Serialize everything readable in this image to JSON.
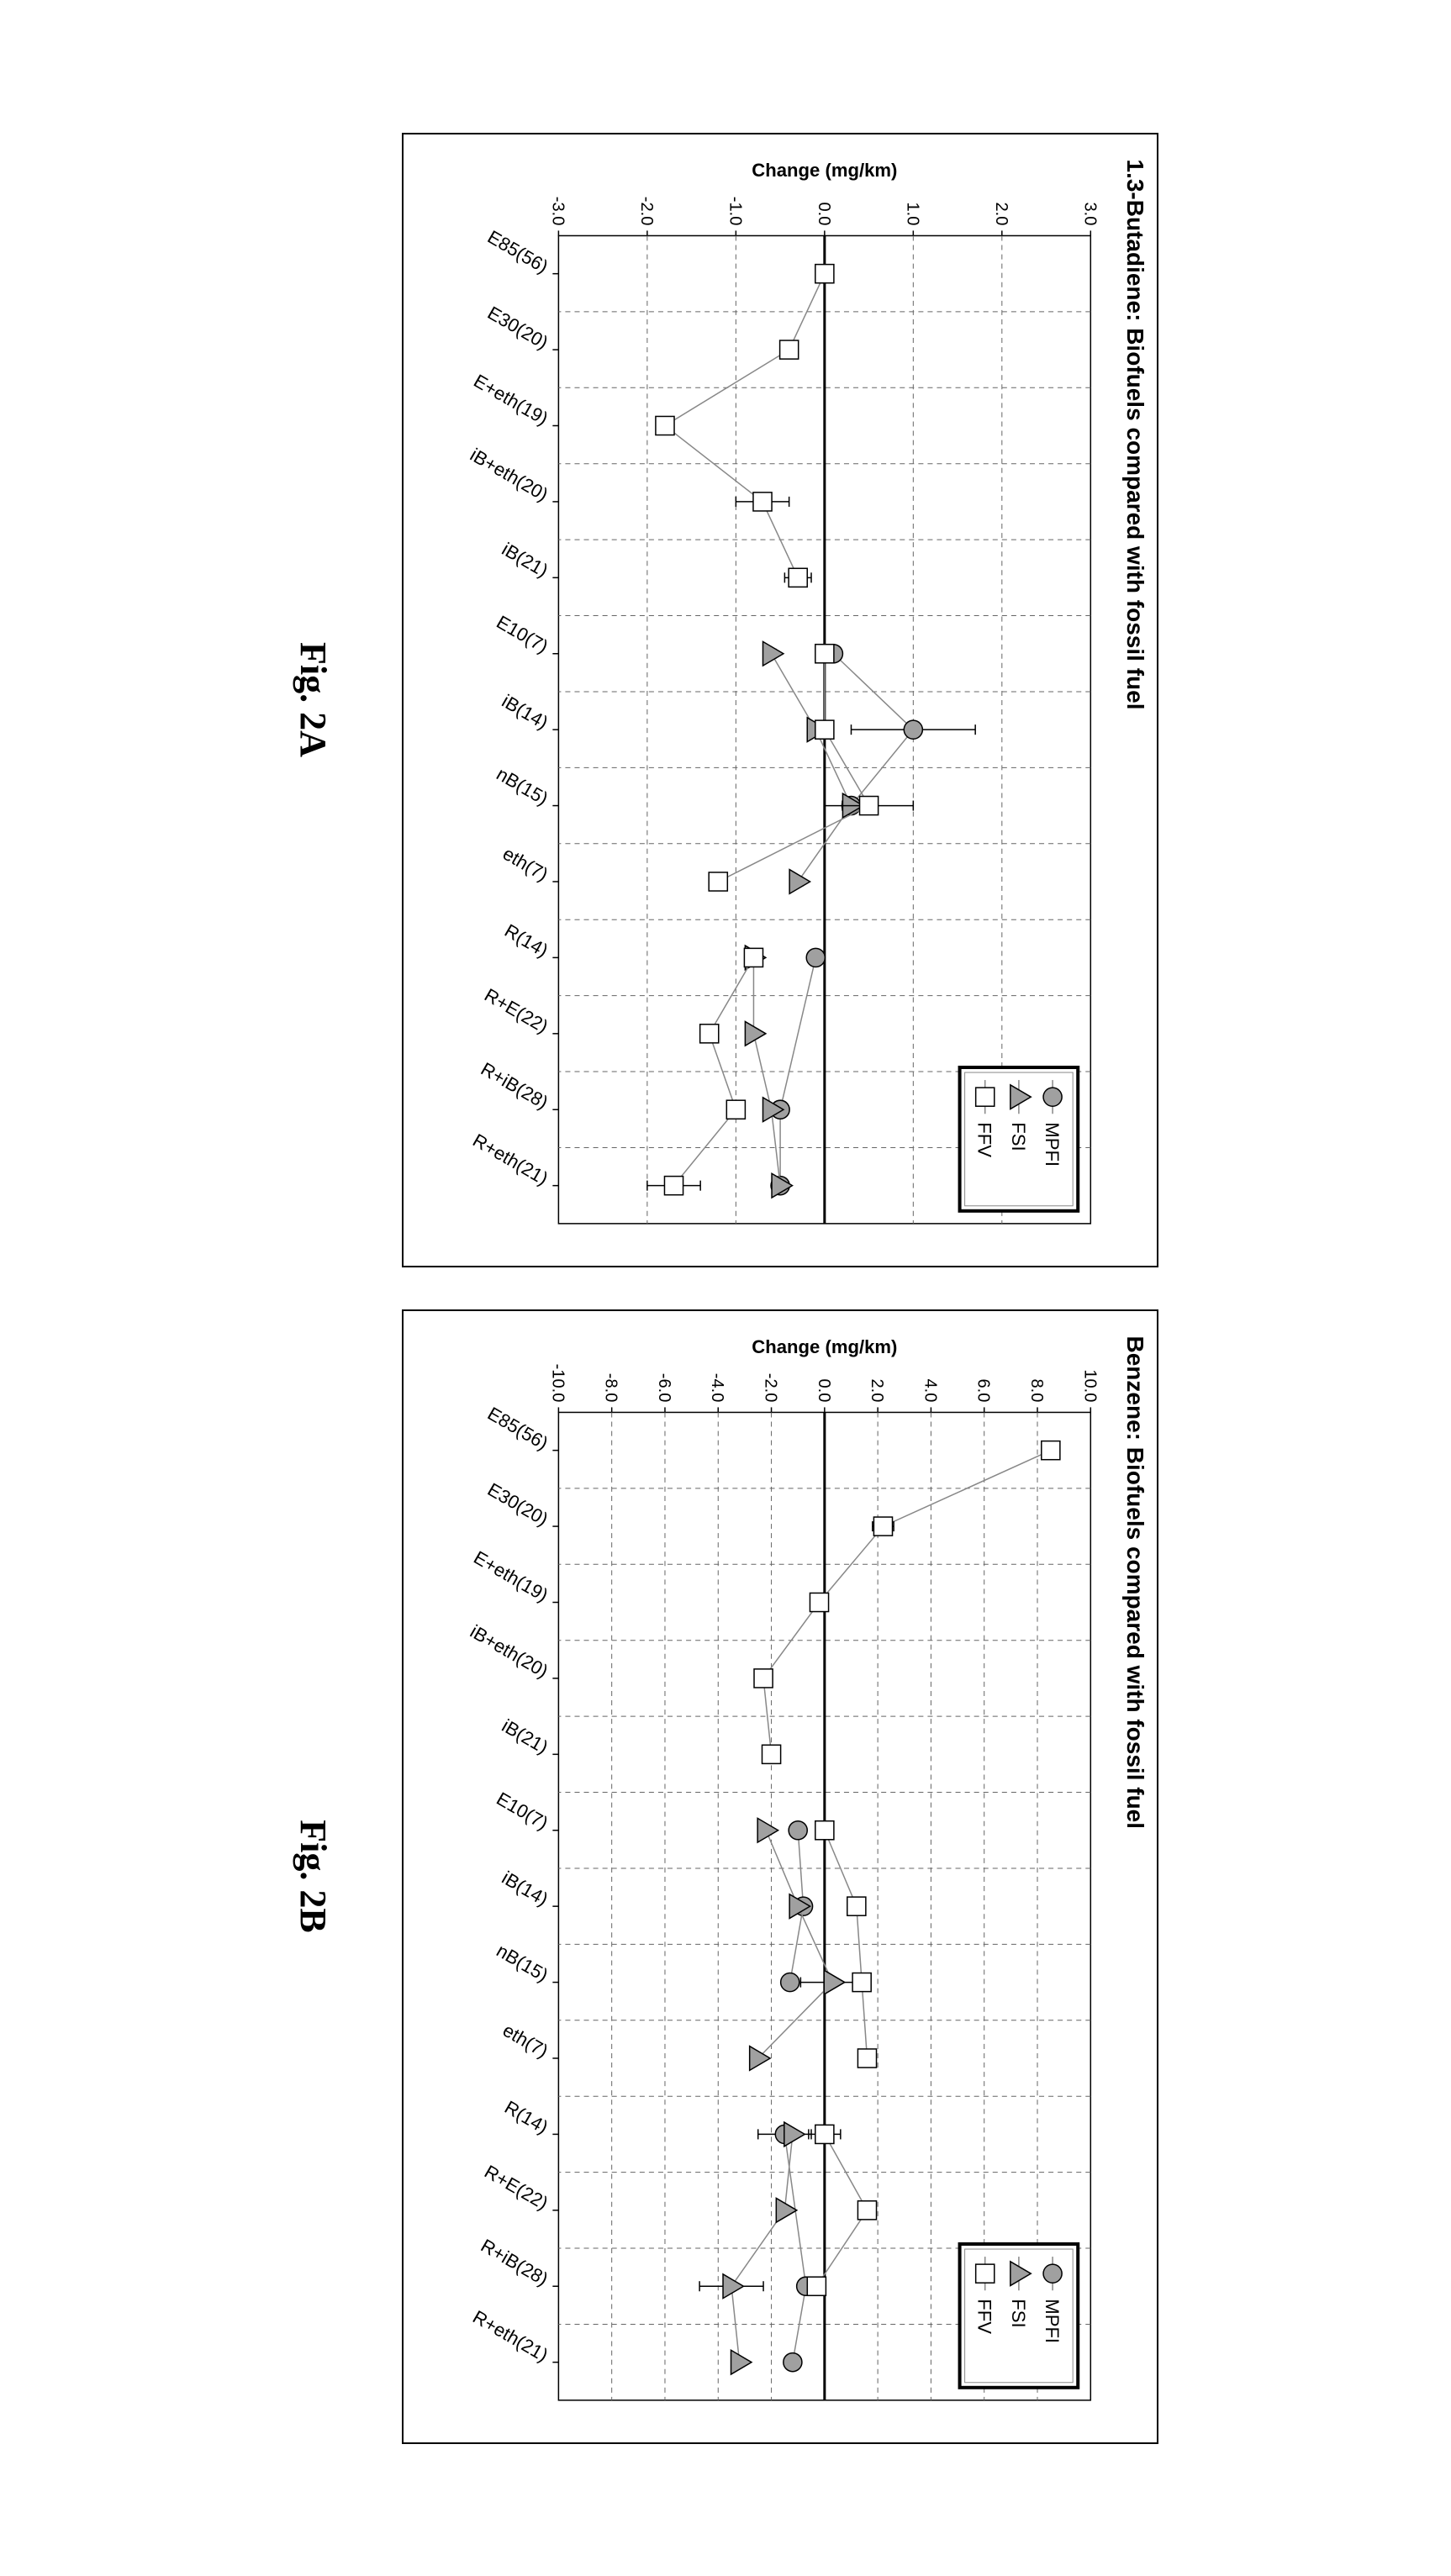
{
  "figure_labels": {
    "left": "Fig. 2A",
    "right": "Fig. 2B"
  },
  "legend": {
    "items": [
      {
        "label": "MPFI",
        "marker": "circle",
        "fill": "#a0a0a0",
        "stroke": "#000000"
      },
      {
        "label": "FSI",
        "marker": "triangle",
        "fill": "#a0a0a0",
        "stroke": "#000000"
      },
      {
        "label": "FFV",
        "marker": "square",
        "fill": "#ffffff",
        "stroke": "#000000"
      }
    ],
    "border_color": "#000000",
    "border_width": 4,
    "background": "#ffffff",
    "fontsize": 22
  },
  "chart_colors": {
    "background": "#ffffff",
    "axis": "#000000",
    "gridline": "#666666",
    "gridline_dash": "6,5",
    "zero_line": "#000000",
    "zero_line_width": 3,
    "series_line": "#888888",
    "series_line_width": 1.5,
    "marker_stroke_width": 1.5,
    "errorbar_color": "#000000"
  },
  "categories": [
    "E85(56)",
    "E30(20)",
    "E+eth(19)",
    "iB+eth(20)",
    "iB(21)",
    "E10(7)",
    "iB(14)",
    "nB(15)",
    "eth(7)",
    "R(14)",
    "R+E(22)",
    "R+iB(28)",
    "R+eth(21)"
  ],
  "category_groups": [
    {
      "start": 0,
      "end": 4
    },
    {
      "start": 5,
      "end": 8
    },
    {
      "start": 9,
      "end": 12
    }
  ],
  "chart_layout": {
    "marker_size": 11,
    "label_fontsize": 22,
    "tick_fontsize": 20,
    "xlabel_fontsize": 22,
    "xlabel_rotation": -60,
    "title_fontsize": 28
  },
  "chart_a": {
    "title": "1.3-Butadiene:  Biofuels compared with fossil fuel",
    "ylabel": "Change (mg/km)",
    "ylim": [
      -3.0,
      3.0
    ],
    "ytick_step": 1.0,
    "ytick_decimals": 1,
    "series": {
      "MPFI": {
        "data": [
          null,
          null,
          null,
          null,
          null,
          0.1,
          1.0,
          0.3,
          null,
          -0.1,
          null,
          -0.5,
          -0.5
        ],
        "err": [
          null,
          null,
          null,
          null,
          null,
          0.05,
          0.7,
          0.1,
          null,
          0.05,
          null,
          0.05,
          0.05
        ]
      },
      "FSI": {
        "data": [
          null,
          null,
          null,
          null,
          null,
          -0.6,
          -0.1,
          0.3,
          -0.3,
          -0.8,
          -0.8,
          -0.6,
          -0.5
        ],
        "err": [
          null,
          null,
          null,
          null,
          null,
          0.05,
          0.05,
          0.05,
          0.05,
          0.05,
          0.05,
          0.05,
          0.05
        ]
      },
      "FFV": {
        "data": [
          0.0,
          -0.4,
          -1.8,
          -0.7,
          -0.3,
          0.0,
          0.0,
          0.5,
          -1.2,
          -0.8,
          -1.3,
          -1.0,
          -1.7
        ],
        "err": [
          0.1,
          0.1,
          0.1,
          0.3,
          0.15,
          0.05,
          0.05,
          0.5,
          0.05,
          0.05,
          0.05,
          0.05,
          0.3
        ]
      }
    }
  },
  "chart_b": {
    "title": "Benzene:  Biofuels compared with fossil fuel",
    "ylabel": "Change (mg/km)",
    "ylim": [
      -10.0,
      10.0
    ],
    "ytick_step": 2.0,
    "ytick_decimals": 1,
    "series": {
      "MPFI": {
        "data": [
          null,
          null,
          null,
          null,
          null,
          -1.0,
          -0.8,
          -1.3,
          null,
          -1.5,
          null,
          -0.7,
          -1.2
        ],
        "err": [
          null,
          null,
          null,
          null,
          null,
          0.1,
          0.1,
          0.2,
          null,
          1.0,
          null,
          0.1,
          0.1
        ]
      },
      "FSI": {
        "data": [
          null,
          null,
          null,
          null,
          null,
          -2.2,
          -1.0,
          0.3,
          -2.5,
          -1.2,
          -1.5,
          -3.5,
          -3.2
        ],
        "err": [
          null,
          null,
          null,
          null,
          null,
          0.1,
          0.1,
          1.2,
          0.1,
          0.1,
          0.1,
          1.2,
          0.1
        ]
      },
      "FFV": {
        "data": [
          8.5,
          2.2,
          -0.2,
          -2.3,
          -2.0,
          0.0,
          1.2,
          1.4,
          1.6,
          0.0,
          1.6,
          -0.3,
          null
        ],
        "err": [
          0.3,
          0.4,
          0.3,
          0.2,
          0.3,
          0.1,
          0.1,
          0.3,
          0.3,
          0.6,
          0.1,
          0.1,
          null
        ]
      }
    }
  }
}
